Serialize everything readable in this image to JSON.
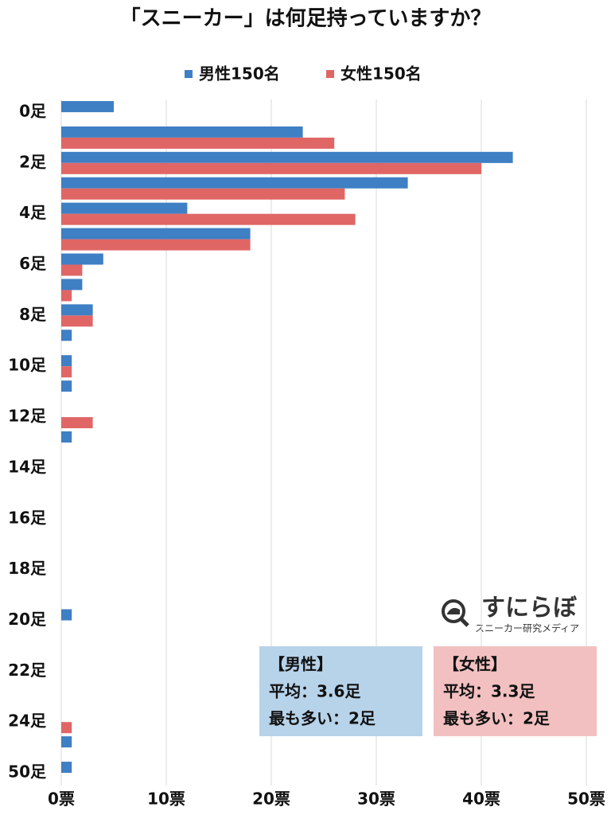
{
  "chart_data": {
    "type": "bar",
    "orientation": "horizontal",
    "title": "「スニーカー」は何足持っていますか？",
    "categories": [
      "0足",
      null,
      "2足",
      null,
      "4足",
      null,
      "6足",
      null,
      "8足",
      null,
      "10足",
      null,
      "12足",
      null,
      "14足",
      null,
      "16足",
      null,
      "18足",
      null,
      "20足",
      null,
      "22足",
      null,
      "24足",
      null,
      "50足"
    ],
    "series": [
      {
        "name": "男性150名",
        "color": "#3f7fc4",
        "values": [
          5,
          23,
          43,
          33,
          12,
          18,
          4,
          2,
          3,
          1,
          1,
          1,
          0,
          1,
          0,
          0,
          0,
          0,
          0,
          0,
          1,
          0,
          0,
          0,
          0,
          1,
          1
        ]
      },
      {
        "name": "女性150名",
        "color": "#e06666",
        "values": [
          0,
          26,
          40,
          27,
          28,
          18,
          2,
          1,
          3,
          0,
          1,
          0,
          3,
          0,
          0,
          0,
          0,
          0,
          0,
          0,
          0,
          0,
          0,
          0,
          1,
          0,
          0
        ]
      }
    ],
    "xlim": [
      0,
      50
    ],
    "xticks": [
      {
        "value": 0,
        "label": "0票"
      },
      {
        "value": 10,
        "label": "10票"
      },
      {
        "value": 20,
        "label": "20票"
      },
      {
        "value": 30,
        "label": "30票"
      },
      {
        "value": 40,
        "label": "40票"
      },
      {
        "value": 50,
        "label": "50票"
      }
    ],
    "grid": true,
    "legend": "top",
    "watermark": {
      "title": "すにらぼ",
      "subtitle": "スニーカー研究メディア"
    },
    "annotations": [
      {
        "lines": [
          "【男性】",
          "平均：3.6足",
          "最も多い：2足"
        ],
        "color": "#b7d3ea"
      },
      {
        "lines": [
          "【女性】",
          "平均：3.3足",
          "最も多い：2足"
        ],
        "color": "#f2c0c0"
      }
    ]
  }
}
